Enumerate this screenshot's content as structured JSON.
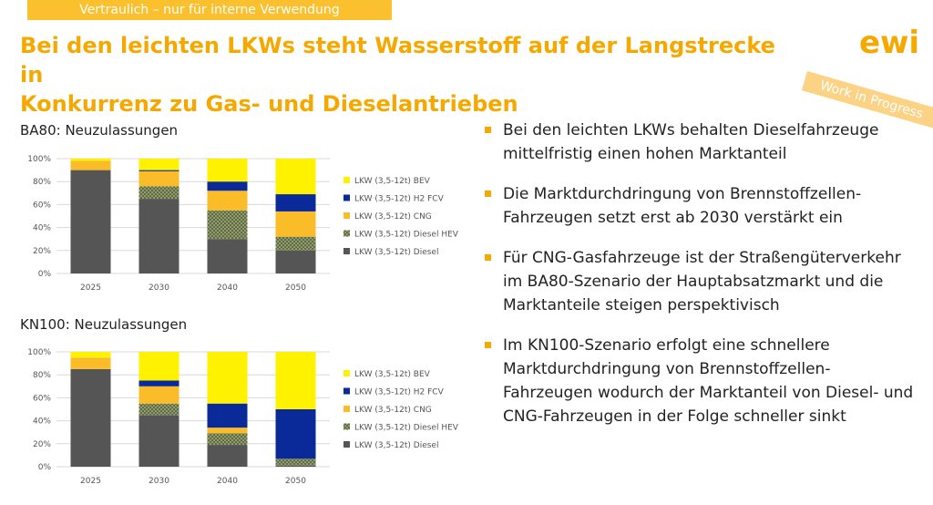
{
  "banner": "Vertraulich – nur für interne Verwendung",
  "title_line1": "Bei den leichten LKWs steht Wasserstoff auf der Langstrecke in",
  "title_line2": "Konkurrenz zu Gas- und Dieselantrieben",
  "logo_text": "ewi",
  "stamp": "Work in Progress",
  "colors": {
    "accent": "#f5a800",
    "BEV": "#fff200",
    "FCV": "#0a2a9a",
    "CNG": "#fbbc2a",
    "HEV": "#5d6b4a",
    "Diesel": "#555555"
  },
  "charts": [
    {
      "title": "BA80: Neuzulassungen"
    },
    {
      "title": "KN100: Neuzulassungen"
    }
  ],
  "chart_data": [
    {
      "type": "bar",
      "stacked": true,
      "title": "BA80: Neuzulassungen",
      "categories": [
        "2025",
        "2030",
        "2040",
        "2050"
      ],
      "yticks": [
        "0%",
        "20%",
        "40%",
        "60%",
        "80%",
        "100%"
      ],
      "ylim": [
        0,
        100
      ],
      "series": [
        {
          "name": "LKW (3,5-12t) Diesel",
          "values": [
            90,
            65,
            30,
            20
          ]
        },
        {
          "name": "LKW (3,5-12t) Diesel HEV",
          "values": [
            0,
            11,
            25,
            12
          ]
        },
        {
          "name": "LKW (3,5-12t) CNG",
          "values": [
            8,
            13,
            17,
            22
          ]
        },
        {
          "name": "LKW (3,5-12t) H2 FCV",
          "values": [
            0,
            1,
            8,
            15
          ]
        },
        {
          "name": "LKW (3,5-12t) BEV",
          "values": [
            2,
            10,
            20,
            31
          ]
        }
      ],
      "legend_order": [
        "LKW (3,5-12t) BEV",
        "LKW (3,5-12t) H2 FCV",
        "LKW (3,5-12t) CNG",
        "LKW (3,5-12t) Diesel HEV",
        "LKW (3,5-12t) Diesel"
      ],
      "legend": "right",
      "grid": true
    },
    {
      "type": "bar",
      "stacked": true,
      "title": "KN100: Neuzulassungen",
      "categories": [
        "2025",
        "2030",
        "2040",
        "2050"
      ],
      "yticks": [
        "0%",
        "20%",
        "40%",
        "60%",
        "80%",
        "100%"
      ],
      "ylim": [
        0,
        100
      ],
      "series": [
        {
          "name": "LKW (3,5-12t) Diesel",
          "values": [
            85,
            45,
            19,
            1
          ]
        },
        {
          "name": "LKW (3,5-12t) Diesel HEV",
          "values": [
            0,
            10,
            10,
            6
          ]
        },
        {
          "name": "LKW (3,5-12t) CNG",
          "values": [
            10,
            15,
            5,
            0
          ]
        },
        {
          "name": "LKW (3,5-12t) H2 FCV",
          "values": [
            0,
            5,
            21,
            43
          ]
        },
        {
          "name": "LKW (3,5-12t) BEV",
          "values": [
            5,
            25,
            45,
            50
          ]
        }
      ],
      "legend_order": [
        "LKW (3,5-12t) BEV",
        "LKW (3,5-12t) H2 FCV",
        "LKW (3,5-12t) CNG",
        "LKW (3,5-12t) Diesel HEV",
        "LKW (3,5-12t) Diesel"
      ],
      "legend": "right",
      "grid": true
    }
  ],
  "bullets": [
    "Bei den leichten LKWs behalten Dieselfahrzeuge mittelfristig einen hohen Marktanteil",
    "Die Marktdurchdringung von Brennstoffzellen-Fahrzeugen setzt erst ab 2030 verstärkt ein",
    "Für CNG-Gasfahrzeuge ist der Straßengüterverkehr im BA80-Szenario der Hauptabsatzmarkt und die Marktanteile steigen perspektivisch",
    "Im KN100-Szenario erfolgt eine schnellere Marktdurchdringung von Brennstoffzellen-Fahrzeugen wodurch der Marktanteil von Diesel- und CNG-Fahrzeugen in der Folge schneller sinkt"
  ]
}
